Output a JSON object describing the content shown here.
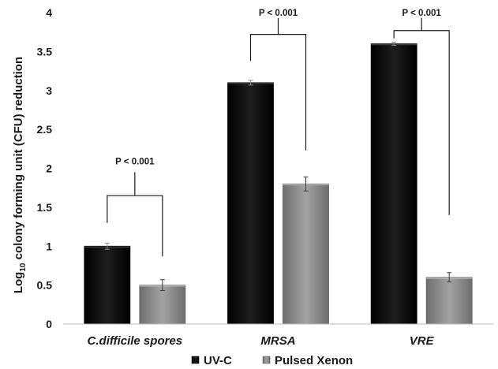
{
  "chart_data": {
    "type": "bar",
    "categories": [
      "C.difficile spores",
      "MRSA",
      "VRE"
    ],
    "series": [
      {
        "name": "UV-C",
        "values": [
          1.0,
          3.1,
          3.6
        ],
        "errors": [
          0.04,
          0.03,
          0.02
        ],
        "color": "#111111"
      },
      {
        "name": "Pulsed Xenon",
        "values": [
          0.5,
          1.8,
          0.6
        ],
        "errors": [
          0.07,
          0.09,
          0.06
        ],
        "color": "#8c8c8c"
      }
    ],
    "ylabel_pre": "Log",
    "ylabel_sub": "10",
    "ylabel_post": " colony forming unit (CFU) reduction",
    "xlabel": "",
    "ylim": [
      0,
      4
    ],
    "yticks": [
      "0",
      "0.5",
      "1",
      "1.5",
      "2",
      "2.5",
      "3",
      "3.5",
      "4"
    ],
    "annotations": [
      "P < 0.001",
      "P < 0.001",
      "P < 0.001"
    ],
    "grid": false,
    "legend_position": "bottom"
  }
}
